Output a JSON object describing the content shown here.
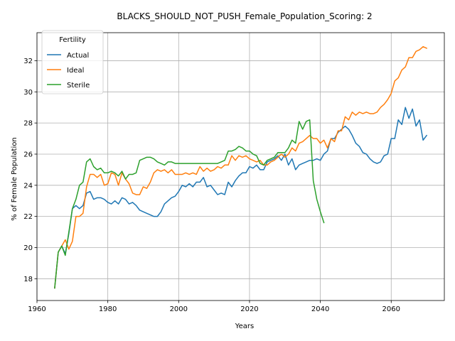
{
  "chart_data": {
    "type": "line",
    "title": "BLACKS_SHOULD_NOT_PUSH_Female_Population_Scoring: 2",
    "xlabel": "Years",
    "ylabel": "% of Female Population",
    "xlim": [
      1960,
      2075
    ],
    "ylim": [
      16.6,
      33.8
    ],
    "xticks": [
      1960,
      1980,
      2000,
      2020,
      2040,
      2060
    ],
    "yticks": [
      18,
      20,
      22,
      24,
      26,
      28,
      30,
      32
    ],
    "grid": true,
    "legend": {
      "title": "Fertility",
      "position": "top-left"
    },
    "series": [
      {
        "name": "Actual",
        "color": "#1f77b4",
        "points": [
          [
            1965,
            17.4
          ],
          [
            1966,
            19.7
          ],
          [
            1967,
            20.1
          ],
          [
            1968,
            19.6
          ],
          [
            1969,
            20.9
          ],
          [
            1970,
            22.5
          ],
          [
            1971,
            22.7
          ],
          [
            1972,
            22.5
          ],
          [
            1973,
            22.7
          ],
          [
            1974,
            23.5
          ],
          [
            1975,
            23.6
          ],
          [
            1976,
            23.1
          ],
          [
            1977,
            23.2
          ],
          [
            1978,
            23.2
          ],
          [
            1979,
            23.1
          ],
          [
            1980,
            22.9
          ],
          [
            1981,
            22.8
          ],
          [
            1982,
            23.0
          ],
          [
            1983,
            22.8
          ],
          [
            1984,
            23.2
          ],
          [
            1985,
            23.1
          ],
          [
            1986,
            22.8
          ],
          [
            1987,
            22.9
          ],
          [
            1988,
            22.7
          ],
          [
            1989,
            22.4
          ],
          [
            1990,
            22.3
          ],
          [
            1991,
            22.2
          ],
          [
            1992,
            22.1
          ],
          [
            1993,
            22.0
          ],
          [
            1994,
            22.0
          ],
          [
            1995,
            22.3
          ],
          [
            1996,
            22.8
          ],
          [
            1997,
            23.0
          ],
          [
            1998,
            23.2
          ],
          [
            1999,
            23.3
          ],
          [
            2000,
            23.6
          ],
          [
            2001,
            24.0
          ],
          [
            2002,
            23.9
          ],
          [
            2003,
            24.1
          ],
          [
            2004,
            23.9
          ],
          [
            2005,
            24.2
          ],
          [
            2006,
            24.2
          ],
          [
            2007,
            24.5
          ],
          [
            2008,
            23.9
          ],
          [
            2009,
            24.0
          ],
          [
            2010,
            23.7
          ],
          [
            2011,
            23.4
          ],
          [
            2012,
            23.5
          ],
          [
            2013,
            23.4
          ],
          [
            2014,
            24.2
          ],
          [
            2015,
            23.9
          ],
          [
            2016,
            24.3
          ],
          [
            2017,
            24.6
          ],
          [
            2018,
            24.8
          ],
          [
            2019,
            24.8
          ],
          [
            2020,
            25.2
          ],
          [
            2021,
            25.1
          ],
          [
            2022,
            25.3
          ],
          [
            2023,
            25.0
          ],
          [
            2024,
            25.0
          ],
          [
            2025,
            25.5
          ],
          [
            2026,
            25.6
          ],
          [
            2027,
            25.7
          ],
          [
            2028,
            25.9
          ],
          [
            2029,
            25.6
          ],
          [
            2030,
            26.0
          ],
          [
            2031,
            25.3
          ],
          [
            2032,
            25.7
          ],
          [
            2033,
            25.0
          ],
          [
            2034,
            25.3
          ],
          [
            2035,
            25.4
          ],
          [
            2036,
            25.5
          ],
          [
            2037,
            25.6
          ],
          [
            2038,
            25.6
          ],
          [
            2039,
            25.7
          ],
          [
            2040,
            25.6
          ],
          [
            2041,
            26.0
          ],
          [
            2042,
            26.2
          ],
          [
            2043,
            27.0
          ],
          [
            2044,
            27.0
          ],
          [
            2045,
            27.4
          ],
          [
            2046,
            27.6
          ],
          [
            2047,
            27.8
          ],
          [
            2048,
            27.6
          ],
          [
            2049,
            27.2
          ],
          [
            2050,
            26.7
          ],
          [
            2051,
            26.5
          ],
          [
            2052,
            26.1
          ],
          [
            2053,
            26.0
          ],
          [
            2054,
            25.7
          ],
          [
            2055,
            25.5
          ],
          [
            2056,
            25.4
          ],
          [
            2057,
            25.5
          ],
          [
            2058,
            25.9
          ],
          [
            2059,
            26.0
          ],
          [
            2060,
            27.0
          ],
          [
            2061,
            27.0
          ],
          [
            2062,
            28.2
          ],
          [
            2063,
            27.9
          ],
          [
            2064,
            29.0
          ],
          [
            2065,
            28.3
          ],
          [
            2066,
            28.9
          ],
          [
            2067,
            27.8
          ],
          [
            2068,
            28.2
          ],
          [
            2069,
            26.9
          ],
          [
            2070,
            27.2
          ]
        ]
      },
      {
        "name": "Ideal",
        "color": "#ff7f0e",
        "points": [
          [
            1965,
            17.4
          ],
          [
            1966,
            19.7
          ],
          [
            1967,
            20.1
          ],
          [
            1968,
            20.5
          ],
          [
            1969,
            19.9
          ],
          [
            1970,
            20.4
          ],
          [
            1971,
            22.0
          ],
          [
            1972,
            22.0
          ],
          [
            1973,
            22.2
          ],
          [
            1974,
            23.9
          ],
          [
            1975,
            24.7
          ],
          [
            1976,
            24.7
          ],
          [
            1977,
            24.5
          ],
          [
            1978,
            24.7
          ],
          [
            1979,
            24.0
          ],
          [
            1980,
            24.1
          ],
          [
            1981,
            24.8
          ],
          [
            1982,
            24.7
          ],
          [
            1983,
            24.0
          ],
          [
            1984,
            24.8
          ],
          [
            1985,
            24.4
          ],
          [
            1986,
            24.1
          ],
          [
            1987,
            23.5
          ],
          [
            1988,
            23.4
          ],
          [
            1989,
            23.4
          ],
          [
            1990,
            23.9
          ],
          [
            1991,
            23.8
          ],
          [
            1992,
            24.2
          ],
          [
            1993,
            24.8
          ],
          [
            1994,
            25.0
          ],
          [
            1995,
            24.9
          ],
          [
            1996,
            25.0
          ],
          [
            1997,
            24.8
          ],
          [
            1998,
            25.0
          ],
          [
            1999,
            24.7
          ],
          [
            2000,
            24.7
          ],
          [
            2001,
            24.7
          ],
          [
            2002,
            24.8
          ],
          [
            2003,
            24.7
          ],
          [
            2004,
            24.8
          ],
          [
            2005,
            24.7
          ],
          [
            2006,
            25.2
          ],
          [
            2007,
            24.9
          ],
          [
            2008,
            25.1
          ],
          [
            2009,
            24.9
          ],
          [
            2010,
            25.0
          ],
          [
            2011,
            25.2
          ],
          [
            2012,
            25.1
          ],
          [
            2013,
            25.3
          ],
          [
            2014,
            25.3
          ],
          [
            2015,
            25.9
          ],
          [
            2016,
            25.6
          ],
          [
            2017,
            25.9
          ],
          [
            2018,
            25.8
          ],
          [
            2019,
            25.9
          ],
          [
            2020,
            25.7
          ],
          [
            2021,
            25.6
          ],
          [
            2022,
            25.5
          ],
          [
            2023,
            25.6
          ],
          [
            2024,
            25.3
          ],
          [
            2025,
            25.3
          ],
          [
            2026,
            25.5
          ],
          [
            2027,
            25.6
          ],
          [
            2028,
            25.8
          ],
          [
            2029,
            26.0
          ],
          [
            2030,
            25.8
          ],
          [
            2031,
            26.0
          ],
          [
            2032,
            26.4
          ],
          [
            2033,
            26.2
          ],
          [
            2034,
            26.7
          ],
          [
            2035,
            26.8
          ],
          [
            2036,
            27.0
          ],
          [
            2037,
            27.2
          ],
          [
            2038,
            27.0
          ],
          [
            2039,
            27.0
          ],
          [
            2040,
            26.7
          ],
          [
            2041,
            26.9
          ],
          [
            2042,
            26.4
          ],
          [
            2043,
            27.0
          ],
          [
            2044,
            26.8
          ],
          [
            2045,
            27.5
          ],
          [
            2046,
            27.5
          ],
          [
            2047,
            28.4
          ],
          [
            2048,
            28.2
          ],
          [
            2049,
            28.7
          ],
          [
            2050,
            28.5
          ],
          [
            2051,
            28.7
          ],
          [
            2052,
            28.6
          ],
          [
            2053,
            28.7
          ],
          [
            2054,
            28.6
          ],
          [
            2055,
            28.6
          ],
          [
            2056,
            28.7
          ],
          [
            2057,
            29.0
          ],
          [
            2058,
            29.2
          ],
          [
            2059,
            29.5
          ],
          [
            2060,
            29.9
          ],
          [
            2061,
            30.7
          ],
          [
            2062,
            30.9
          ],
          [
            2063,
            31.4
          ],
          [
            2064,
            31.6
          ],
          [
            2065,
            32.2
          ],
          [
            2066,
            32.2
          ],
          [
            2067,
            32.6
          ],
          [
            2068,
            32.7
          ],
          [
            2069,
            32.9
          ],
          [
            2070,
            32.8
          ]
        ]
      },
      {
        "name": "Sterile",
        "color": "#2ca02c",
        "points": [
          [
            1965,
            17.4
          ],
          [
            1966,
            19.7
          ],
          [
            1967,
            20.1
          ],
          [
            1968,
            19.5
          ],
          [
            1969,
            21.0
          ],
          [
            1970,
            22.5
          ],
          [
            1971,
            23.1
          ],
          [
            1972,
            24.0
          ],
          [
            1973,
            24.2
          ],
          [
            1974,
            25.5
          ],
          [
            1975,
            25.7
          ],
          [
            1976,
            25.2
          ],
          [
            1977,
            25.0
          ],
          [
            1978,
            25.1
          ],
          [
            1979,
            24.8
          ],
          [
            1980,
            24.8
          ],
          [
            1981,
            24.9
          ],
          [
            1982,
            24.8
          ],
          [
            1983,
            24.6
          ],
          [
            1984,
            24.9
          ],
          [
            1985,
            24.4
          ],
          [
            1986,
            24.7
          ],
          [
            1987,
            24.7
          ],
          [
            1988,
            24.8
          ],
          [
            1989,
            25.6
          ],
          [
            1990,
            25.7
          ],
          [
            1991,
            25.8
          ],
          [
            1992,
            25.8
          ],
          [
            1993,
            25.7
          ],
          [
            1994,
            25.5
          ],
          [
            1995,
            25.4
          ],
          [
            1996,
            25.3
          ],
          [
            1997,
            25.5
          ],
          [
            1998,
            25.5
          ],
          [
            1999,
            25.4
          ],
          [
            2000,
            25.4
          ],
          [
            2001,
            25.4
          ],
          [
            2002,
            25.4
          ],
          [
            2003,
            25.4
          ],
          [
            2004,
            25.4
          ],
          [
            2005,
            25.4
          ],
          [
            2006,
            25.4
          ],
          [
            2007,
            25.4
          ],
          [
            2008,
            25.4
          ],
          [
            2009,
            25.4
          ],
          [
            2010,
            25.4
          ],
          [
            2011,
            25.4
          ],
          [
            2012,
            25.5
          ],
          [
            2013,
            25.6
          ],
          [
            2014,
            26.2
          ],
          [
            2015,
            26.2
          ],
          [
            2016,
            26.3
          ],
          [
            2017,
            26.5
          ],
          [
            2018,
            26.4
          ],
          [
            2019,
            26.2
          ],
          [
            2020,
            26.2
          ],
          [
            2021,
            26.0
          ],
          [
            2022,
            25.9
          ],
          [
            2023,
            25.4
          ],
          [
            2024,
            25.3
          ],
          [
            2025,
            25.6
          ],
          [
            2026,
            25.7
          ],
          [
            2027,
            25.8
          ],
          [
            2028,
            26.1
          ],
          [
            2029,
            26.1
          ],
          [
            2030,
            26.1
          ],
          [
            2031,
            26.4
          ],
          [
            2032,
            26.9
          ],
          [
            2033,
            26.7
          ],
          [
            2034,
            28.1
          ],
          [
            2035,
            27.6
          ],
          [
            2036,
            28.1
          ],
          [
            2037,
            28.2
          ],
          [
            2038,
            24.3
          ],
          [
            2039,
            23.1
          ],
          [
            2040,
            22.3
          ],
          [
            2041,
            21.6
          ]
        ]
      }
    ]
  }
}
